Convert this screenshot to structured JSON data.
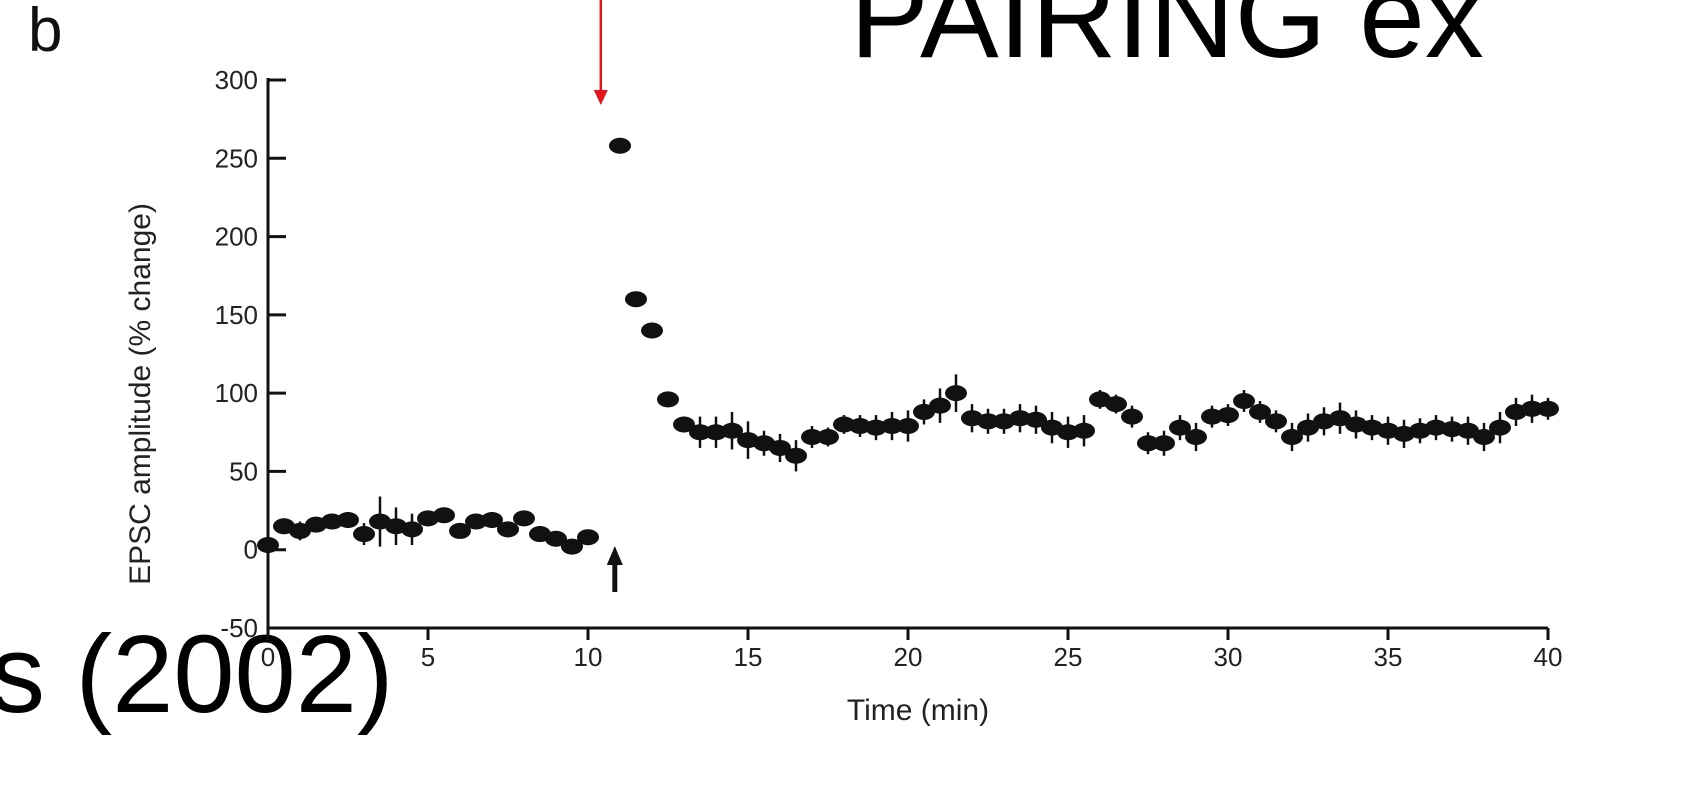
{
  "slide": {
    "title_fragment": "PAIRING ex",
    "citation_fragment": "s (2002)",
    "panel_label": "b"
  },
  "colors": {
    "marker": "#111111",
    "axis": "#111111",
    "annotation_arrow_top": "#e0161b",
    "annotation_arrow_bottom": "#111111"
  },
  "chart_data": {
    "type": "scatter",
    "title": "",
    "xlabel": "Time (min)",
    "ylabel": "EPSC amplitude (% change)",
    "xlim": [
      0,
      40
    ],
    "ylim": [
      -50,
      300
    ],
    "xticks": [
      0,
      5,
      10,
      15,
      20,
      25,
      30,
      35,
      40
    ],
    "xtick_labels": [
      "0",
      "5",
      "10",
      "15",
      "20",
      "25",
      "30",
      "35",
      "40"
    ],
    "yticks": [
      -50,
      0,
      50,
      100,
      150,
      200,
      250,
      300
    ],
    "ytick_labels": [
      "-50",
      "0",
      "50",
      "100",
      "150",
      "200",
      "250",
      "300"
    ],
    "grid": false,
    "error_bars": true,
    "annotations": [
      {
        "type": "arrow",
        "color": "red",
        "points": "down",
        "x": 10.4
      },
      {
        "type": "arrow",
        "color": "black",
        "points": "up",
        "x": 10.4
      }
    ],
    "series": [
      {
        "x": [
          0,
          0.5,
          1,
          1.5,
          2,
          2.5,
          3,
          3.5,
          4,
          4.5,
          5,
          5.5,
          6,
          6.5,
          7,
          7.5,
          8,
          8.5,
          9,
          9.5,
          10,
          11,
          11.5,
          12,
          12.5,
          13,
          13.5,
          14,
          14.5,
          15,
          15.5,
          16,
          16.5,
          17,
          17.5,
          18,
          18.5,
          19,
          19.5,
          20,
          20.5,
          21,
          21.5,
          22,
          22.5,
          23,
          23.5,
          24,
          24.5,
          25,
          25.5,
          26,
          26.5,
          27,
          27.5,
          28,
          28.5,
          29,
          29.5,
          30,
          30.5,
          31,
          31.5,
          32,
          32.5,
          33,
          33.5,
          34,
          34.5,
          35,
          35.5,
          36,
          36.5,
          37,
          37.5,
          38,
          38.5,
          39,
          39.5,
          40
        ],
        "y": [
          3,
          15,
          12,
          16,
          18,
          19,
          10,
          18,
          15,
          13,
          20,
          22,
          12,
          18,
          19,
          13,
          20,
          10,
          7,
          2,
          8,
          258,
          160,
          140,
          96,
          80,
          75,
          75,
          76,
          70,
          68,
          65,
          60,
          72,
          72,
          80,
          79,
          78,
          79,
          79,
          88,
          92,
          100,
          84,
          82,
          82,
          84,
          83,
          78,
          75,
          76,
          96,
          93,
          85,
          68,
          68,
          78,
          72,
          85,
          86,
          95,
          88,
          82,
          72,
          78,
          82,
          84,
          80,
          78,
          76,
          74,
          76,
          78,
          77,
          76,
          72,
          78,
          88,
          90,
          90
        ],
        "err": [
          2,
          5,
          6,
          5,
          4,
          5,
          7,
          16,
          12,
          10,
          5,
          4,
          4,
          4,
          5,
          5,
          4,
          5,
          4,
          4,
          4,
          2,
          2,
          2,
          2,
          5,
          10,
          10,
          12,
          12,
          8,
          9,
          10,
          7,
          6,
          6,
          7,
          8,
          9,
          10,
          8,
          11,
          12,
          9,
          8,
          8,
          9,
          9,
          10,
          10,
          10,
          6,
          6,
          7,
          7,
          8,
          8,
          9,
          7,
          7,
          7,
          7,
          7,
          9,
          9,
          9,
          10,
          9,
          8,
          9,
          9,
          8,
          8,
          8,
          9,
          9,
          10,
          9,
          9,
          7
        ]
      }
    ]
  }
}
